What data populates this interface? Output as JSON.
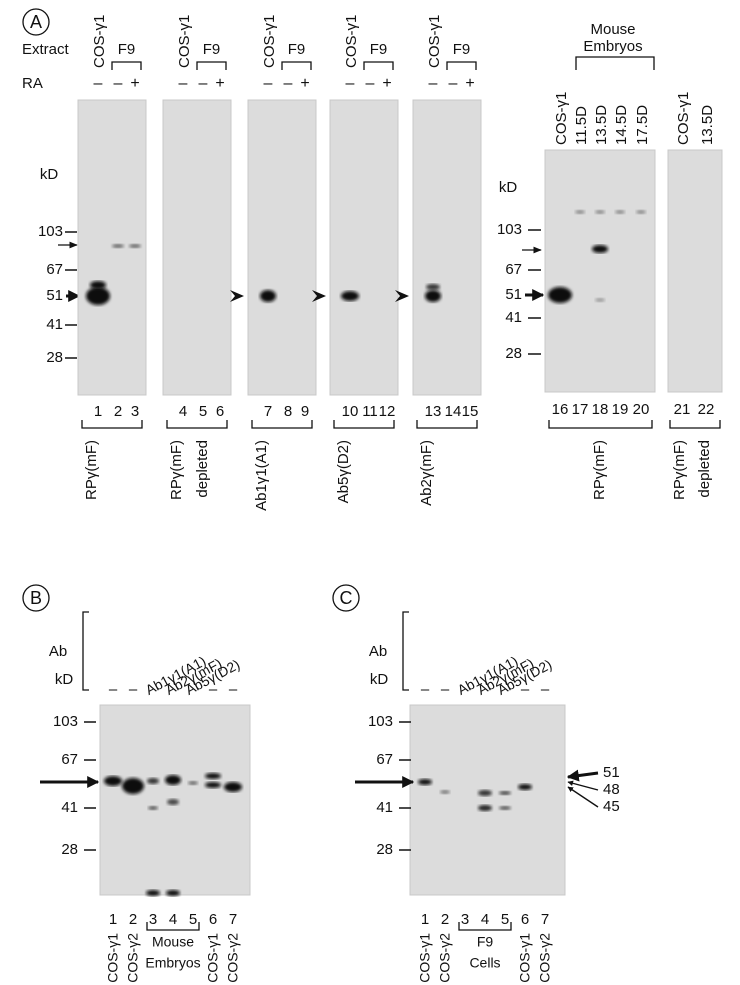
{
  "panel_a": {
    "label": "A",
    "extract_label": "Extract",
    "ra_label": "RA",
    "kd_left": {
      "unit": "kD",
      "markers": [
        "103",
        "67",
        "51",
        "41",
        "28"
      ]
    },
    "blots": [
      {
        "lanes": [
          "COS-γ1"
        ],
        "group": "F9",
        "ra": [
          "–",
          "–",
          "+"
        ],
        "lane_numbers": [
          "1",
          "2",
          "3"
        ],
        "antibody": [
          "RPγ(mF)"
        ]
      },
      {
        "lanes": [
          "COS-γ1"
        ],
        "group": "F9",
        "ra": [
          "–",
          "–",
          "+"
        ],
        "lane_numbers": [
          "4",
          "5",
          "6"
        ],
        "antibody": [
          "RPγ(mF)",
          "depleted"
        ]
      },
      {
        "lanes": [
          "COS-γ1"
        ],
        "group": "F9",
        "ra": [
          "–",
          "–",
          "+"
        ],
        "lane_numbers": [
          "7",
          "8",
          "9"
        ],
        "antibody": [
          "Ab1γ1(A1)"
        ]
      },
      {
        "lanes": [
          "COS-γ1"
        ],
        "group": "F9",
        "ra": [
          "–",
          "–",
          "+"
        ],
        "lane_numbers": [
          "10",
          "11",
          "12"
        ],
        "antibody": [
          "Ab5γ(D2)"
        ]
      },
      {
        "lanes": [
          "COS-γ1"
        ],
        "group": "F9",
        "ra": [
          "–",
          "–",
          "+"
        ],
        "lane_numbers": [
          "13",
          "14",
          "15"
        ],
        "antibody": [
          "Ab2γ(mF)"
        ]
      }
    ],
    "kd_right": {
      "unit": "kD",
      "markers": [
        "103",
        "67",
        "51",
        "41",
        "28"
      ]
    },
    "embryo_group": [
      "Mouse",
      "Embryos"
    ],
    "embryo_blot": {
      "lanes": [
        "COS-γ1",
        "11.5D",
        "13.5D",
        "14.5D",
        "17.5D"
      ],
      "lane_numbers": [
        "16",
        "17",
        "18",
        "19",
        "20"
      ],
      "antibody": [
        "RPγ(mF)"
      ]
    },
    "depleted_blot": {
      "lanes": [
        "COS-γ1",
        "13.5D"
      ],
      "lane_numbers": [
        "21",
        "22"
      ],
      "antibody": [
        "RPγ(mF)",
        "depleted"
      ]
    }
  },
  "panel_b": {
    "label": "B",
    "ab_label": "Ab",
    "dashes": [
      "–",
      "–",
      "–",
      "–"
    ],
    "antibodies": [
      "Ab1γ1(A1)",
      "Ab2γ(mF)",
      "Ab5γ(D2)"
    ],
    "kd": {
      "unit": "kD",
      "markers": [
        "103",
        "67",
        "41",
        "28"
      ]
    },
    "lane_numbers": [
      "1",
      "2",
      "3",
      "4",
      "5",
      "6",
      "7"
    ],
    "group": [
      "Mouse",
      "Embryos"
    ],
    "bottom_lanes": [
      "COS-γ1",
      "COS-γ2",
      "COS-γ1",
      "COS-γ2"
    ]
  },
  "panel_c": {
    "label": "C",
    "ab_label": "Ab",
    "dashes": [
      "–",
      "–",
      "–",
      "–"
    ],
    "antibodies": [
      "Ab1γ1(A1)",
      "Ab2γ(mF)",
      "Ab5γ(D2)"
    ],
    "kd": {
      "unit": "kD",
      "markers": [
        "103",
        "67",
        "41",
        "28"
      ]
    },
    "right_markers": [
      "51",
      "48",
      "45"
    ],
    "lane_numbers": [
      "1",
      "2",
      "3",
      "4",
      "5",
      "6",
      "7"
    ],
    "group": [
      "F9",
      "Cells"
    ],
    "bottom_lanes": [
      "COS-γ1",
      "COS-γ2",
      "COS-γ1",
      "COS-γ2"
    ]
  }
}
